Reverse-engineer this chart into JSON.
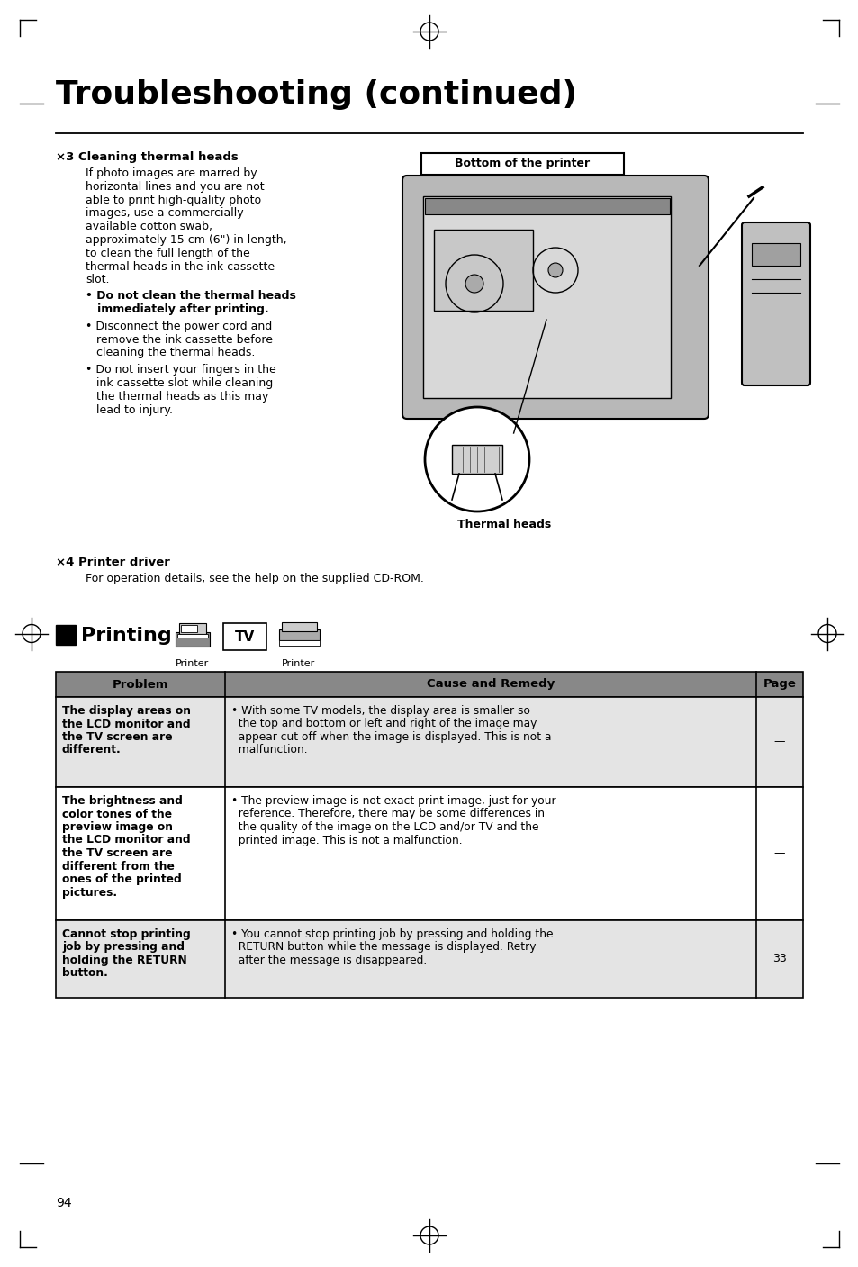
{
  "title": "Troubleshooting (continued)",
  "page_number": "94",
  "background_color": "#ffffff",
  "section3_heading": "×3 Cleaning thermal heads",
  "section3_body_lines": [
    "If photo images are marred by",
    "horizontal lines and you are not",
    "able to print high-quality photo",
    "images, use a commercially",
    "available cotton swab,",
    "approximately 15 cm (6\") in length,",
    "to clean the full length of the",
    "thermal heads in the ink cassette",
    "slot."
  ],
  "bold_bullet1_line1": "• Do not clean the thermal heads",
  "bold_bullet1_line2": "   immediately after printing.",
  "bullet2_lines": [
    "• Disconnect the power cord and",
    "   remove the ink cassette before",
    "   cleaning the thermal heads."
  ],
  "bullet3_lines": [
    "• Do not insert your fingers in the",
    "   ink cassette slot while cleaning",
    "   the thermal heads as this may",
    "   lead to injury."
  ],
  "bottom_of_printer_label": "Bottom of the printer",
  "thermal_heads_label": "Thermal heads",
  "section4_heading": "×4 Printer driver",
  "section4_body": "For operation details, see the help on the supplied CD-ROM.",
  "printing_section_title": "Printing",
  "printer_label": "Printer",
  "tv_label": "TV",
  "table_header": [
    "Problem",
    "Cause and Remedy",
    "Page"
  ],
  "table_rows": [
    {
      "problem": "The display areas on\nthe LCD monitor and\nthe TV screen are\ndifferent.",
      "cause_lines": [
        "• With some TV models, the display area is smaller so",
        "  the top and bottom or left and right of the image may",
        "  appear cut off when the image is displayed. This is not a",
        "  malfunction."
      ],
      "page": "—"
    },
    {
      "problem": "The brightness and\ncolor tones of the\npreview image on\nthe LCD monitor and\nthe TV screen are\ndifferent from the\nones of the printed\npictures.",
      "cause_lines": [
        "• The preview image is not exact print image, just for your",
        "  reference. Therefore, there may be some differences in",
        "  the quality of the image on the LCD and/or TV and the",
        "  printed image. This is not a malfunction."
      ],
      "page": "—"
    },
    {
      "problem": "Cannot stop printing\njob by pressing and\nholding the RETURN\nbutton.",
      "cause_lines": [
        "• You cannot stop printing job by pressing and holding the",
        "  RETURN button while the message is displayed. Retry",
        "  after the message is disappeared."
      ],
      "page": "33"
    }
  ]
}
